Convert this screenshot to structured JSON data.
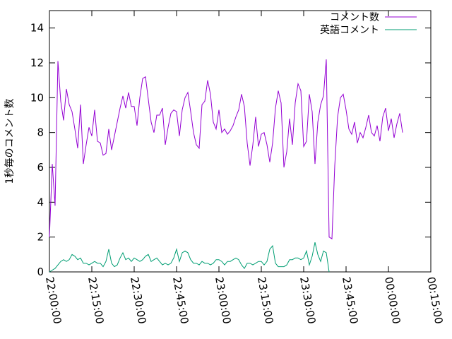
{
  "chart_data": {
    "type": "line",
    "ylabel": "1秒毎のコメント数",
    "xlabel": "",
    "ylim": [
      0,
      15
    ],
    "y_ticks": [
      "0",
      "2",
      "4",
      "6",
      "8",
      "10",
      "12",
      "14"
    ],
    "x_ticks": [
      "22:00:00",
      "22:15:00",
      "22:30:00",
      "22:45:00",
      "23:00:00",
      "23:15:00",
      "23:30:00",
      "23:45:00",
      "00:00:00",
      "00:15:00"
    ],
    "x_range_minutes": [
      0,
      135
    ],
    "grid": false,
    "legend_position": "top-right",
    "series": [
      {
        "name": "コメント数",
        "color": "#9400d3",
        "x": [
          0,
          1,
          2,
          3,
          4,
          5,
          6,
          7,
          8,
          9,
          10,
          11,
          12,
          13,
          14,
          15,
          16,
          17,
          18,
          19,
          20,
          21,
          22,
          23,
          24,
          25,
          26,
          27,
          28,
          29,
          30,
          31,
          32,
          33,
          34,
          35,
          36,
          37,
          38,
          39,
          40,
          41,
          42,
          43,
          44,
          45,
          46,
          47,
          48,
          49,
          50,
          51,
          52,
          53,
          54,
          55,
          56,
          57,
          58,
          59,
          60,
          61,
          62,
          63,
          64,
          65,
          66,
          67,
          68,
          69,
          70,
          71,
          72,
          73,
          74,
          75,
          76,
          77,
          78,
          79,
          80,
          81,
          82,
          83,
          84,
          85,
          86,
          87,
          88,
          89,
          90,
          91,
          92,
          93,
          94,
          95,
          96,
          97,
          98,
          99,
          100,
          101,
          102,
          103,
          104,
          105,
          106,
          107,
          108,
          109,
          110,
          111,
          112,
          113,
          114,
          115,
          116,
          117,
          118,
          119,
          120,
          121,
          122,
          123,
          124,
          125
        ],
        "values": [
          2.0,
          6.2,
          3.8,
          12.1,
          9.8,
          8.7,
          10.5,
          9.6,
          9.2,
          8.2,
          7.1,
          9.6,
          6.2,
          7.3,
          8.3,
          7.8,
          9.3,
          7.5,
          7.4,
          6.7,
          6.8,
          8.2,
          7.0,
          7.8,
          8.6,
          9.4,
          10.1,
          9.4,
          10.3,
          9.5,
          9.5,
          8.4,
          10.0,
          11.1,
          11.2,
          9.9,
          8.6,
          8.0,
          9.0,
          9.0,
          9.4,
          7.3,
          8.3,
          9.1,
          9.3,
          9.2,
          7.8,
          9.3,
          10.0,
          10.3,
          9.2,
          8.0,
          7.3,
          7.1,
          9.6,
          9.8,
          11.0,
          10.2,
          8.6,
          8.2,
          9.3,
          8.0,
          8.2,
          7.9,
          8.1,
          8.4,
          8.9,
          9.3,
          10.2,
          9.5,
          7.4,
          6.1,
          7.3,
          8.9,
          7.2,
          7.9,
          8.0,
          7.3,
          6.3,
          7.4,
          9.4,
          10.4,
          9.7,
          6.0,
          6.9,
          8.8,
          7.3,
          9.7,
          10.8,
          10.4,
          7.2,
          7.5,
          10.2,
          9.2,
          6.2,
          8.6,
          9.6,
          10.1,
          12.2,
          2.0,
          1.9,
          6.1,
          8.9,
          10.0,
          10.2,
          9.3,
          8.2,
          7.9,
          8.6,
          7.4,
          8.0,
          7.7,
          8.3,
          9.0,
          8.0,
          7.8,
          8.4,
          7.5,
          8.9,
          9.4,
          8.1,
          8.8,
          7.7,
          8.5,
          9.1,
          8.0
        ],
        "note": ""
      },
      {
        "name": "英語コメント",
        "color": "#009e73",
        "x": [
          0,
          1,
          2,
          3,
          4,
          5,
          6,
          7,
          8,
          9,
          10,
          11,
          12,
          13,
          14,
          15,
          16,
          17,
          18,
          19,
          20,
          21,
          22,
          23,
          24,
          25,
          26,
          27,
          28,
          29,
          30,
          31,
          32,
          33,
          34,
          35,
          36,
          37,
          38,
          39,
          40,
          41,
          42,
          43,
          44,
          45,
          46,
          47,
          48,
          49,
          50,
          51,
          52,
          53,
          54,
          55,
          56,
          57,
          58,
          59,
          60,
          61,
          62,
          63,
          64,
          65,
          66,
          67,
          68,
          69,
          70,
          71,
          72,
          73,
          74,
          75,
          76,
          77,
          78,
          79,
          80,
          81,
          82,
          83,
          84,
          85,
          86,
          87,
          88,
          89,
          90,
          91,
          92,
          93,
          94,
          95,
          96,
          97,
          98,
          99
        ],
        "values": [
          0.0,
          0.1,
          0.2,
          0.4,
          0.6,
          0.7,
          0.6,
          0.7,
          1.0,
          0.9,
          0.7,
          0.8,
          0.5,
          0.5,
          0.4,
          0.5,
          0.6,
          0.5,
          0.5,
          0.3,
          0.6,
          1.3,
          0.5,
          0.3,
          0.4,
          0.8,
          1.1,
          0.7,
          0.8,
          0.6,
          0.8,
          0.7,
          0.6,
          0.7,
          0.9,
          1.0,
          0.6,
          0.7,
          0.8,
          0.6,
          0.4,
          0.5,
          0.4,
          0.5,
          0.8,
          1.3,
          0.6,
          1.1,
          1.2,
          1.1,
          0.7,
          0.5,
          0.5,
          0.4,
          0.6,
          0.5,
          0.5,
          0.4,
          0.5,
          0.7,
          0.7,
          0.6,
          0.4,
          0.6,
          0.6,
          0.7,
          0.8,
          0.7,
          0.4,
          0.2,
          0.5,
          0.5,
          0.4,
          0.5,
          0.6,
          0.6,
          0.4,
          0.6,
          1.3,
          1.5,
          0.5,
          0.3,
          0.3,
          0.3,
          0.4,
          0.7,
          0.7,
          0.8,
          0.8,
          0.7,
          0.8,
          1.2,
          0.4,
          0.9,
          1.7,
          1.0,
          0.6,
          1.2,
          1.1,
          0.0
        ]
      }
    ]
  }
}
